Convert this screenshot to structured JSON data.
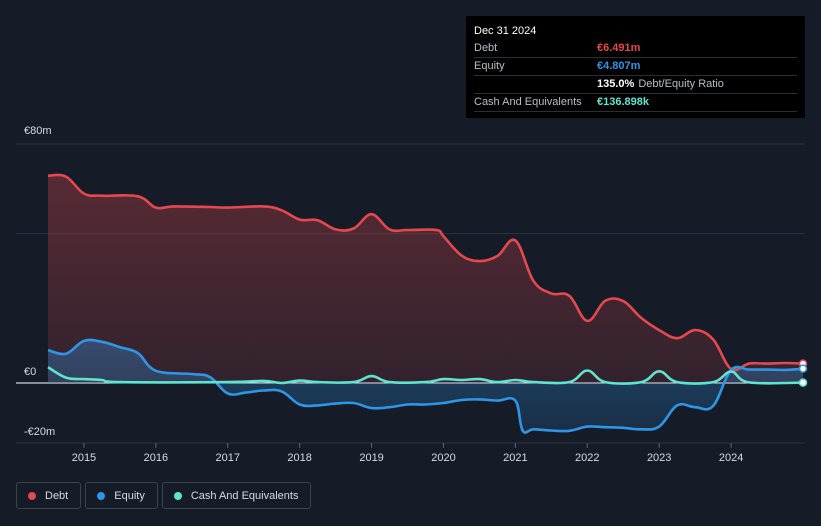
{
  "tooltip": {
    "date": "Dec 31 2024",
    "rows": [
      {
        "label": "Debt",
        "value": "€6.491m",
        "color": "#e5484d"
      },
      {
        "label": "Equity",
        "value": "€4.807m",
        "color": "#2f95e6"
      },
      {
        "label": "",
        "value": "135.0%",
        "suffix": "Debt/Equity Ratio",
        "color": "#ffffff"
      },
      {
        "label": "Cash And Equivalents",
        "value": "€136.898k",
        "color": "#5ee5cf"
      }
    ]
  },
  "legend": [
    {
      "label": "Debt",
      "color": "#e5484d"
    },
    {
      "label": "Equity",
      "color": "#2f95e6"
    },
    {
      "label": "Cash And Equivalents",
      "color": "#5ee5cf"
    }
  ],
  "chart_data": {
    "type": "area",
    "title": "",
    "xlabel": "",
    "ylabel": "",
    "ylim": [
      -20,
      80
    ],
    "xlim": [
      2014.5,
      2025.0
    ],
    "y_tick_labels": [
      {
        "value": 80,
        "label": "€80m"
      },
      {
        "value": 0,
        "label": "€0"
      },
      {
        "value": -20,
        "label": "-€20m"
      }
    ],
    "x_ticks": [
      2015,
      2016,
      2017,
      2018,
      2019,
      2020,
      2021,
      2022,
      2023,
      2024
    ],
    "x_tick_labels": [
      "2015",
      "2016",
      "2017",
      "2018",
      "2019",
      "2020",
      "2021",
      "2022",
      "2023",
      "2024"
    ],
    "grid": true,
    "series": [
      {
        "name": "Debt",
        "color": "#e5484d",
        "points": [
          [
            2014.5,
            69.4
          ],
          [
            2014.75,
            69.1
          ],
          [
            2015.0,
            63.4
          ],
          [
            2015.25,
            62.7
          ],
          [
            2015.75,
            62.5
          ],
          [
            2016.0,
            58.7
          ],
          [
            2016.25,
            59.1
          ],
          [
            2016.75,
            58.9
          ],
          [
            2017.0,
            58.7
          ],
          [
            2017.5,
            59.1
          ],
          [
            2017.75,
            57.8
          ],
          [
            2018.0,
            54.7
          ],
          [
            2018.25,
            54.5
          ],
          [
            2018.5,
            51.4
          ],
          [
            2018.75,
            51.7
          ],
          [
            2019.0,
            56.5
          ],
          [
            2019.25,
            51.4
          ],
          [
            2019.5,
            51.2
          ],
          [
            2019.9,
            51.2
          ],
          [
            2020.0,
            49.1
          ],
          [
            2020.25,
            42.7
          ],
          [
            2020.5,
            40.8
          ],
          [
            2020.75,
            42.5
          ],
          [
            2021.0,
            47.7
          ],
          [
            2021.25,
            34.2
          ],
          [
            2021.5,
            30.0
          ],
          [
            2021.75,
            29.2
          ],
          [
            2022.0,
            20.8
          ],
          [
            2022.25,
            27.5
          ],
          [
            2022.5,
            27.4
          ],
          [
            2022.75,
            21.8
          ],
          [
            2023.0,
            17.7
          ],
          [
            2023.25,
            15.0
          ],
          [
            2023.5,
            17.7
          ],
          [
            2023.75,
            14.6
          ],
          [
            2024.0,
            4.7
          ],
          [
            2024.25,
            6.5
          ],
          [
            2024.5,
            6.5
          ],
          [
            2024.75,
            6.7
          ],
          [
            2025.0,
            6.49
          ]
        ]
      },
      {
        "name": "Equity",
        "color": "#2f95e6",
        "points": [
          [
            2014.5,
            11.0
          ],
          [
            2014.75,
            9.8
          ],
          [
            2015.0,
            14.1
          ],
          [
            2015.25,
            13.8
          ],
          [
            2015.5,
            12.0
          ],
          [
            2015.75,
            10.0
          ],
          [
            2016.0,
            4.1
          ],
          [
            2016.5,
            3.0
          ],
          [
            2016.75,
            2.0
          ],
          [
            2017.0,
            -3.5
          ],
          [
            2017.25,
            -3.2
          ],
          [
            2017.5,
            -2.5
          ],
          [
            2017.75,
            -2.8
          ],
          [
            2018.0,
            -7.2
          ],
          [
            2018.25,
            -7.5
          ],
          [
            2018.5,
            -6.9
          ],
          [
            2018.75,
            -6.7
          ],
          [
            2019.0,
            -8.4
          ],
          [
            2019.25,
            -8.1
          ],
          [
            2019.5,
            -7.2
          ],
          [
            2019.75,
            -7.2
          ],
          [
            2020.0,
            -6.7
          ],
          [
            2020.25,
            -5.7
          ],
          [
            2020.5,
            -5.5
          ],
          [
            2020.75,
            -5.9
          ],
          [
            2021.0,
            -5.9
          ],
          [
            2021.1,
            -15.9
          ],
          [
            2021.25,
            -15.5
          ],
          [
            2021.5,
            -15.9
          ],
          [
            2021.75,
            -16.0
          ],
          [
            2022.0,
            -14.6
          ],
          [
            2022.25,
            -14.8
          ],
          [
            2022.5,
            -15.0
          ],
          [
            2022.75,
            -15.5
          ],
          [
            2023.0,
            -14.6
          ],
          [
            2023.25,
            -7.5
          ],
          [
            2023.5,
            -8.1
          ],
          [
            2023.75,
            -7.7
          ],
          [
            2024.0,
            4.4
          ],
          [
            2024.25,
            4.5
          ],
          [
            2024.5,
            4.5
          ],
          [
            2024.75,
            4.4
          ],
          [
            2025.0,
            4.81
          ]
        ]
      },
      {
        "name": "Cash And Equivalents",
        "color": "#5ee5cf",
        "points": [
          [
            2014.5,
            5.3
          ],
          [
            2014.75,
            1.8
          ],
          [
            2015.0,
            1.3
          ],
          [
            2015.25,
            1.0
          ],
          [
            2015.5,
            0.3
          ],
          [
            2017.0,
            0.3
          ],
          [
            2017.5,
            0.7
          ],
          [
            2017.75,
            0.0
          ],
          [
            2018.0,
            0.8
          ],
          [
            2018.25,
            0.3
          ],
          [
            2018.75,
            0.3
          ],
          [
            2019.0,
            2.3
          ],
          [
            2019.25,
            0.3
          ],
          [
            2019.75,
            0.3
          ],
          [
            2020.0,
            1.3
          ],
          [
            2020.25,
            1.0
          ],
          [
            2020.5,
            1.3
          ],
          [
            2020.75,
            0.3
          ],
          [
            2021.0,
            1.0
          ],
          [
            2021.25,
            0.3
          ],
          [
            2021.75,
            0.3
          ],
          [
            2022.0,
            4.2
          ],
          [
            2022.25,
            0.3
          ],
          [
            2022.75,
            0.3
          ],
          [
            2023.0,
            3.9
          ],
          [
            2023.25,
            0.3
          ],
          [
            2023.75,
            0.3
          ],
          [
            2024.0,
            3.8
          ],
          [
            2024.25,
            0.2
          ],
          [
            2025.0,
            0.137
          ]
        ]
      }
    ]
  }
}
